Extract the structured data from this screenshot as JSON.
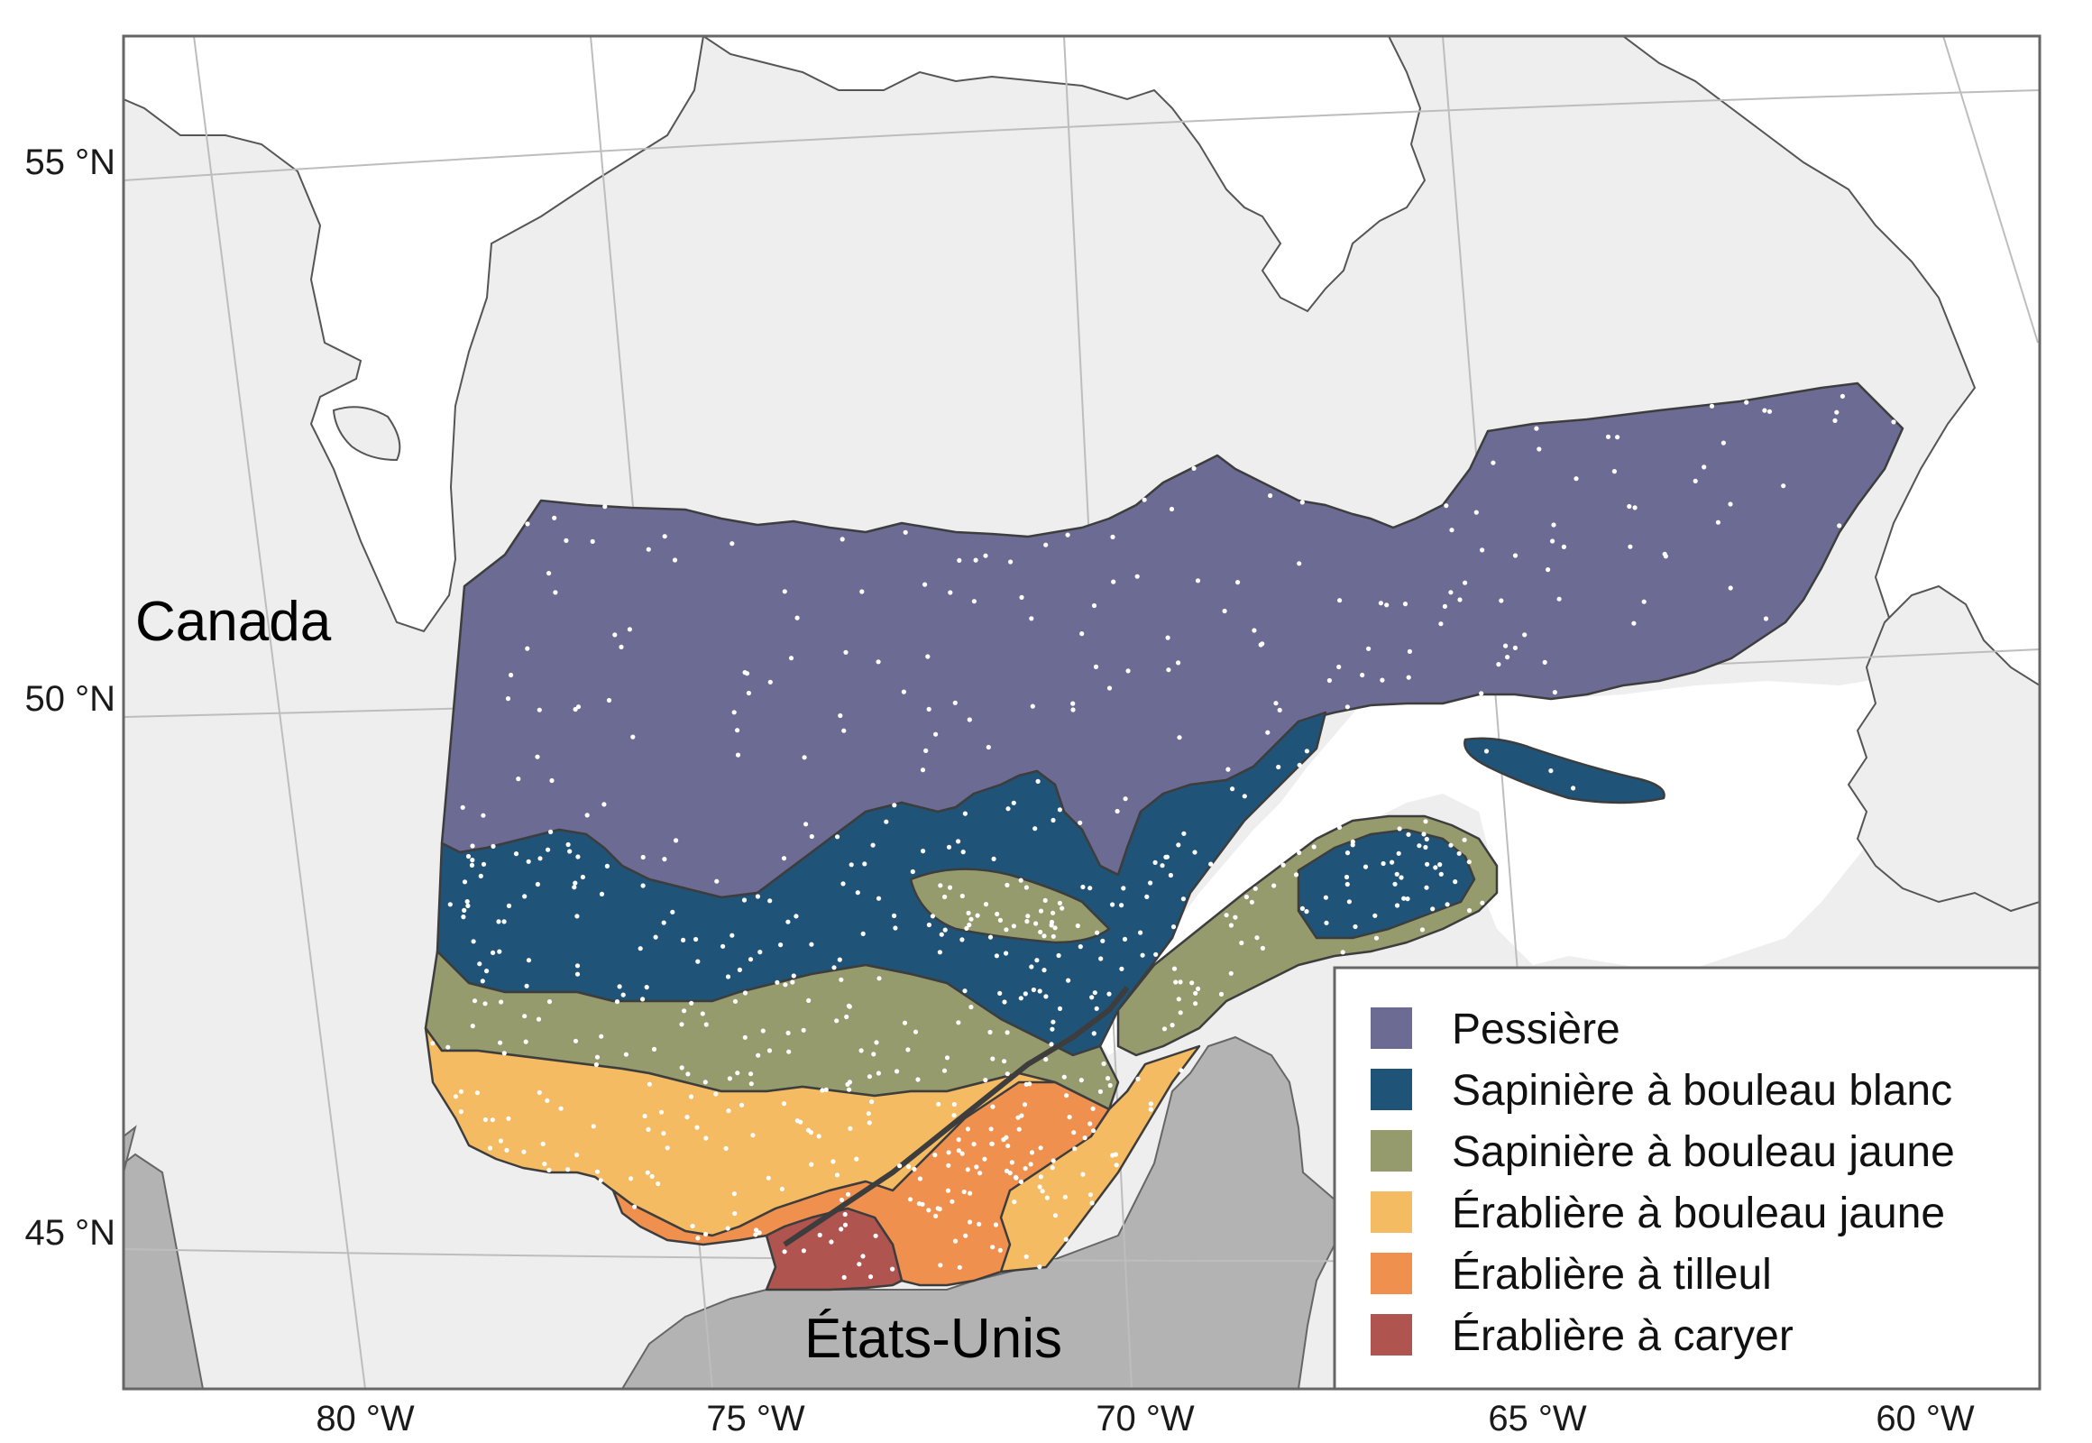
{
  "map": {
    "latitude_labels": [
      "55 °N",
      "50 °N",
      "45 °N"
    ],
    "longitude_labels": [
      "80 °W",
      "75 °W",
      "70 °W",
      "65 °W",
      "60 °W"
    ],
    "place_labels": {
      "canada": "Canada",
      "usa": "États-Unis"
    },
    "colors": {
      "land_other": "#eeeeee",
      "usa_land": "#b3b3b3",
      "water": "#ffffff",
      "graticule": "#bdbdbd",
      "border": "#4d4d4d",
      "points": "#ffffff"
    }
  },
  "legend": {
    "items": [
      {
        "label": "Pessière",
        "color": "#6b6b94"
      },
      {
        "label": "Sapinière à bouleau blanc",
        "color": "#1f5478"
      },
      {
        "label": "Sapinière à bouleau jaune",
        "color": "#959b6c"
      },
      {
        "label": "Érablière à bouleau jaune",
        "color": "#f4bb63"
      },
      {
        "label": "Érablière à tilleul",
        "color": "#f0904f"
      },
      {
        "label": "Érablière à caryer",
        "color": "#b0544f"
      }
    ]
  }
}
